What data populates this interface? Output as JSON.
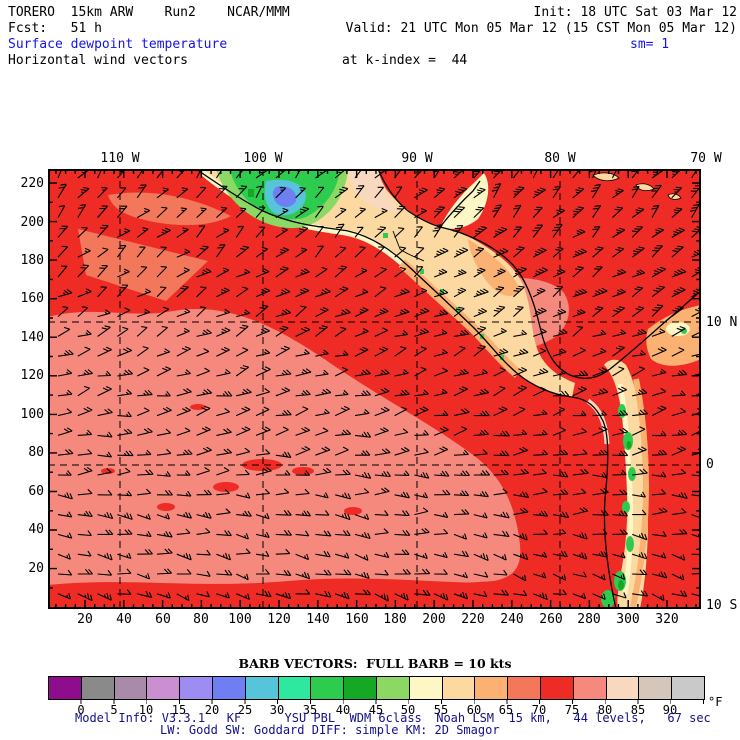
{
  "header": {
    "line1_left": "TORERO  15km ARW    Run2    NCAR/MMM",
    "line1_right": "Init: 18 UTC Sat 03 Mar 12",
    "line2_left": "Fcst:   51 h",
    "line2_right": "Valid: 21 UTC Mon 05 Mar 12 (15 CST Mon 05 Mar 12)",
    "line3_left": "Surface dewpoint temperature",
    "line3_right": "sm= 1",
    "line4_left": "Horizontal wind vectors",
    "line4_right": "at k-index =  44"
  },
  "map": {
    "top_axis": [
      "110 W",
      "100 W",
      "90 W",
      "80 W",
      "70 W"
    ],
    "right_axis": [
      "10 N",
      "0",
      "10 S"
    ],
    "left_axis": [
      "220",
      "200",
      "180",
      "160",
      "140",
      "120",
      "100",
      "80",
      "60",
      "40",
      "20"
    ],
    "bottom_axis": [
      "20",
      "40",
      "60",
      "80",
      "100",
      "120",
      "140",
      "160",
      "180",
      "200",
      "220",
      "240",
      "260",
      "280",
      "300",
      "320"
    ]
  },
  "colorbar": {
    "title": "BARB VECTORS:  FULL BARB = 10 kts",
    "tick_labels": [
      "0",
      "5",
      "10",
      "15",
      "20",
      "25",
      "30",
      "35",
      "40",
      "45",
      "50",
      "55",
      "60",
      "65",
      "70",
      "75",
      "80",
      "85",
      "90"
    ],
    "unit": "°F",
    "colors": [
      "#8d0d8d",
      "#8a8a8a",
      "#a98ba9",
      "#c98fd1",
      "#9d8df2",
      "#6f7ff2",
      "#57c4d9",
      "#2fe8a0",
      "#2ecc4e",
      "#15a825",
      "#8bd964",
      "#fdf6c5",
      "#fbd9a1",
      "#fbb171",
      "#f3775a",
      "#ee2b24",
      "#f5897d",
      "#f8d9c0",
      "#d4c6ba",
      "#c9c9c9"
    ]
  },
  "footer": {
    "line1": "Model Info: V3.3.1   KF      YSU PBL  WDM 6class  Noah LSM  15 km,   44 levels,   67 sec",
    "line2": "LW: Godd SW: Goddard DIFF: simple KM: 2D Smagor"
  },
  "colors": {
    "accent_blue": "#1414e6",
    "footer_blue": "#11118c",
    "land_red": "#ee2b24",
    "ocean_salmon": "#f5897d"
  }
}
